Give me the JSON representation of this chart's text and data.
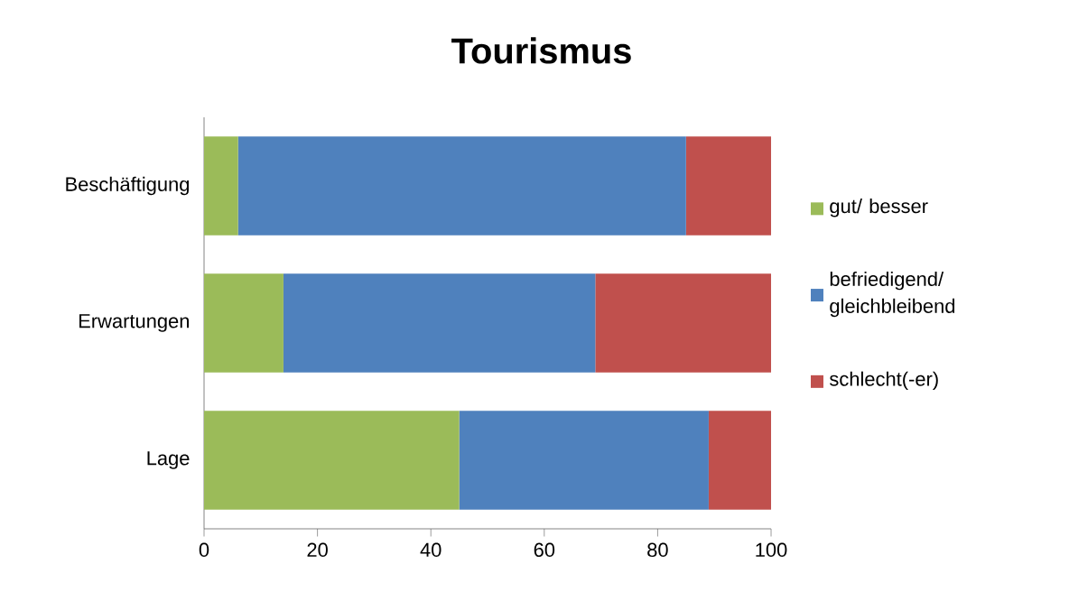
{
  "chart_data": {
    "type": "bar",
    "title": "Tourismus",
    "orientation": "horizontal",
    "stacked": true,
    "categories": [
      "Beschäftigung",
      "Erwartungen",
      "Lage"
    ],
    "series": [
      {
        "name": "gut/ besser",
        "color": "#9bbb59",
        "values": [
          6,
          14,
          45
        ]
      },
      {
        "name": "befriedigend/ gleichbleibend",
        "color": "#4f81bd",
        "values": [
          79,
          55,
          44
        ]
      },
      {
        "name": "schlecht(-er)",
        "color": "#c0504d",
        "values": [
          15,
          31,
          11
        ]
      }
    ],
    "xlim": [
      0,
      100
    ],
    "xticks": [
      0,
      20,
      40,
      60,
      80,
      100
    ],
    "grid": false,
    "legend": "right"
  }
}
